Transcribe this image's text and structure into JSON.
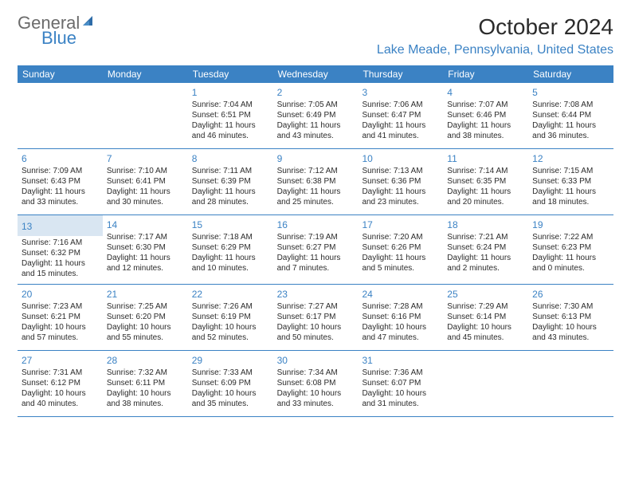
{
  "brand": {
    "textGray": "General",
    "textBlue": "Blue"
  },
  "title": "October 2024",
  "location": "Lake Meade, Pennsylvania, United States",
  "colors": {
    "headerBg": "#3b82c4",
    "headerText": "#ffffff",
    "dayNum": "#3b82c4",
    "rule": "#3b82c4",
    "todayBg": "#d9e6f2",
    "bodyText": "#2b2b2b",
    "logoGray": "#6b6b6b"
  },
  "dayHeaders": [
    "Sunday",
    "Monday",
    "Tuesday",
    "Wednesday",
    "Thursday",
    "Friday",
    "Saturday"
  ],
  "weeks": [
    [
      {
        "empty": true
      },
      {
        "empty": true
      },
      {
        "num": "1",
        "sunrise": "7:04 AM",
        "sunset": "6:51 PM",
        "daylight": "11 hours and 46 minutes."
      },
      {
        "num": "2",
        "sunrise": "7:05 AM",
        "sunset": "6:49 PM",
        "daylight": "11 hours and 43 minutes."
      },
      {
        "num": "3",
        "sunrise": "7:06 AM",
        "sunset": "6:47 PM",
        "daylight": "11 hours and 41 minutes."
      },
      {
        "num": "4",
        "sunrise": "7:07 AM",
        "sunset": "6:46 PM",
        "daylight": "11 hours and 38 minutes."
      },
      {
        "num": "5",
        "sunrise": "7:08 AM",
        "sunset": "6:44 PM",
        "daylight": "11 hours and 36 minutes."
      }
    ],
    [
      {
        "num": "6",
        "sunrise": "7:09 AM",
        "sunset": "6:43 PM",
        "daylight": "11 hours and 33 minutes."
      },
      {
        "num": "7",
        "sunrise": "7:10 AM",
        "sunset": "6:41 PM",
        "daylight": "11 hours and 30 minutes."
      },
      {
        "num": "8",
        "sunrise": "7:11 AM",
        "sunset": "6:39 PM",
        "daylight": "11 hours and 28 minutes."
      },
      {
        "num": "9",
        "sunrise": "7:12 AM",
        "sunset": "6:38 PM",
        "daylight": "11 hours and 25 minutes."
      },
      {
        "num": "10",
        "sunrise": "7:13 AM",
        "sunset": "6:36 PM",
        "daylight": "11 hours and 23 minutes."
      },
      {
        "num": "11",
        "sunrise": "7:14 AM",
        "sunset": "6:35 PM",
        "daylight": "11 hours and 20 minutes."
      },
      {
        "num": "12",
        "sunrise": "7:15 AM",
        "sunset": "6:33 PM",
        "daylight": "11 hours and 18 minutes."
      }
    ],
    [
      {
        "num": "13",
        "today": true,
        "sunrise": "7:16 AM",
        "sunset": "6:32 PM",
        "daylight": "11 hours and 15 minutes."
      },
      {
        "num": "14",
        "sunrise": "7:17 AM",
        "sunset": "6:30 PM",
        "daylight": "11 hours and 12 minutes."
      },
      {
        "num": "15",
        "sunrise": "7:18 AM",
        "sunset": "6:29 PM",
        "daylight": "11 hours and 10 minutes."
      },
      {
        "num": "16",
        "sunrise": "7:19 AM",
        "sunset": "6:27 PM",
        "daylight": "11 hours and 7 minutes."
      },
      {
        "num": "17",
        "sunrise": "7:20 AM",
        "sunset": "6:26 PM",
        "daylight": "11 hours and 5 minutes."
      },
      {
        "num": "18",
        "sunrise": "7:21 AM",
        "sunset": "6:24 PM",
        "daylight": "11 hours and 2 minutes."
      },
      {
        "num": "19",
        "sunrise": "7:22 AM",
        "sunset": "6:23 PM",
        "daylight": "11 hours and 0 minutes."
      }
    ],
    [
      {
        "num": "20",
        "sunrise": "7:23 AM",
        "sunset": "6:21 PM",
        "daylight": "10 hours and 57 minutes."
      },
      {
        "num": "21",
        "sunrise": "7:25 AM",
        "sunset": "6:20 PM",
        "daylight": "10 hours and 55 minutes."
      },
      {
        "num": "22",
        "sunrise": "7:26 AM",
        "sunset": "6:19 PM",
        "daylight": "10 hours and 52 minutes."
      },
      {
        "num": "23",
        "sunrise": "7:27 AM",
        "sunset": "6:17 PM",
        "daylight": "10 hours and 50 minutes."
      },
      {
        "num": "24",
        "sunrise": "7:28 AM",
        "sunset": "6:16 PM",
        "daylight": "10 hours and 47 minutes."
      },
      {
        "num": "25",
        "sunrise": "7:29 AM",
        "sunset": "6:14 PM",
        "daylight": "10 hours and 45 minutes."
      },
      {
        "num": "26",
        "sunrise": "7:30 AM",
        "sunset": "6:13 PM",
        "daylight": "10 hours and 43 minutes."
      }
    ],
    [
      {
        "num": "27",
        "sunrise": "7:31 AM",
        "sunset": "6:12 PM",
        "daylight": "10 hours and 40 minutes."
      },
      {
        "num": "28",
        "sunrise": "7:32 AM",
        "sunset": "6:11 PM",
        "daylight": "10 hours and 38 minutes."
      },
      {
        "num": "29",
        "sunrise": "7:33 AM",
        "sunset": "6:09 PM",
        "daylight": "10 hours and 35 minutes."
      },
      {
        "num": "30",
        "sunrise": "7:34 AM",
        "sunset": "6:08 PM",
        "daylight": "10 hours and 33 minutes."
      },
      {
        "num": "31",
        "sunrise": "7:36 AM",
        "sunset": "6:07 PM",
        "daylight": "10 hours and 31 minutes."
      },
      {
        "empty": true
      },
      {
        "empty": true
      }
    ]
  ],
  "labels": {
    "sunrise": "Sunrise:",
    "sunset": "Sunset:",
    "daylight": "Daylight:"
  }
}
